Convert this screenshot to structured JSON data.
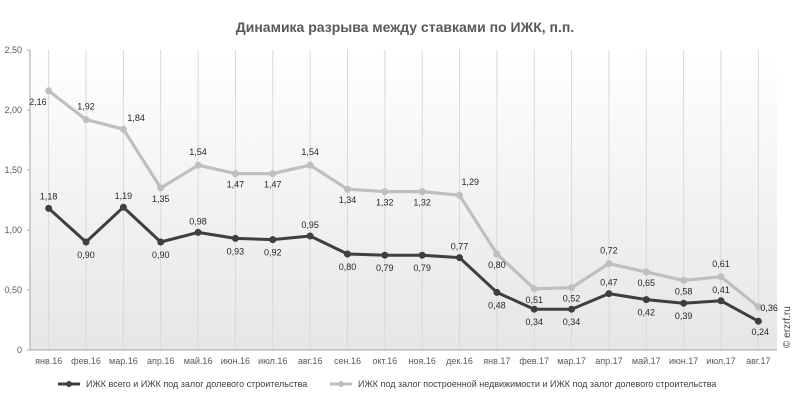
{
  "chart_data": {
    "type": "line",
    "title": "Динамика разрыва между ставками по ИЖК, п.п.",
    "xlabel": "",
    "ylabel": "",
    "ylim": [
      0,
      2.5
    ],
    "yticks": [
      0,
      0.5,
      1.0,
      1.5,
      2.0,
      2.5
    ],
    "ytick_labels": [
      "0",
      "0,50",
      "1,00",
      "1,50",
      "2,00",
      "2,50"
    ],
    "grid": "vertical",
    "legend_position": "bottom",
    "categories": [
      "янв.16",
      "фев.16",
      "мар.16",
      "апр.16",
      "май.16",
      "июн.16",
      "июл.16",
      "авг.16",
      "сен.16",
      "окт.16",
      "ноя.16",
      "дек.16",
      "янв.17",
      "фев.17",
      "мар.17",
      "апр.17",
      "май.17",
      "июн.17",
      "июл.17",
      "авг.17"
    ],
    "series": [
      {
        "name": "ИЖК всего  и  ИЖК под  залог долевого  строительства",
        "color": "#3f3f3f",
        "values": [
          1.18,
          0.9,
          1.19,
          0.9,
          0.98,
          0.93,
          0.92,
          0.95,
          0.8,
          0.79,
          0.79,
          0.77,
          0.48,
          0.34,
          0.34,
          0.47,
          0.42,
          0.39,
          0.41,
          0.24
        ],
        "labels": [
          "1,18",
          "0,90",
          "1,19",
          "0,90",
          "0,98",
          "0,93",
          "0,92",
          "0,95",
          "0,80",
          "0,79",
          "0,79",
          "0,77",
          "0,48",
          "0,34",
          "0,34",
          "0,47",
          "0,42",
          "0,39",
          "0,41",
          "0,24"
        ]
      },
      {
        "name": "ИЖК под  залог  построенной  недвижимости  и  ИЖК под залог  долевого  строительства",
        "color": "#bfbfbf",
        "values": [
          2.16,
          1.92,
          1.84,
          1.35,
          1.54,
          1.47,
          1.47,
          1.54,
          1.34,
          1.32,
          1.32,
          1.29,
          0.8,
          0.51,
          0.52,
          0.72,
          0.65,
          0.58,
          0.61,
          0.36
        ],
        "labels": [
          "2,16",
          "1,92",
          "1,84",
          "1,35",
          "1,54",
          "1,47",
          "1,47",
          "1,54",
          "1,34",
          "1,32",
          "1,32",
          "1,29",
          "0,80",
          "0,51",
          "0,52",
          "0,72",
          "0,65",
          "0,58",
          "0,61",
          "0,36"
        ]
      }
    ]
  },
  "credit": "© erzrf.ru"
}
